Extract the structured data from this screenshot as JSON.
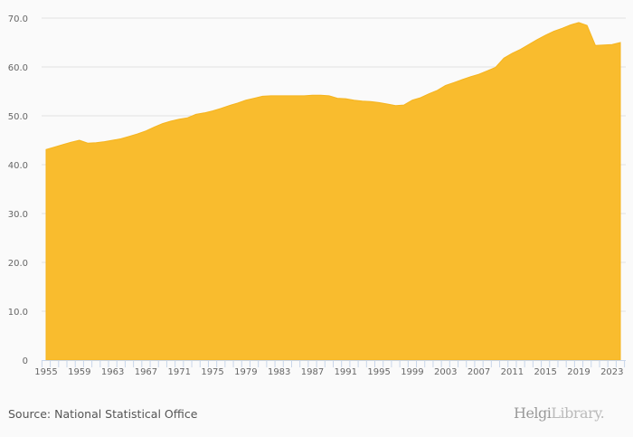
{
  "chart_data": {
    "type": "area",
    "title": "",
    "xlabel": "",
    "ylabel": "",
    "ylim": [
      0,
      70
    ],
    "yticks": [
      "0",
      "10.0",
      "20.0",
      "30.0",
      "40.0",
      "50.0",
      "60.0",
      "70.0"
    ],
    "xticks": [
      "1955",
      "1959",
      "1963",
      "1967",
      "1971",
      "1975",
      "1979",
      "1983",
      "1987",
      "1991",
      "1995",
      "1999",
      "2003",
      "2007",
      "2011",
      "2015",
      "2019",
      "2023"
    ],
    "grid": true,
    "color": "#f9bc2e",
    "x": [
      1955,
      1956,
      1957,
      1958,
      1959,
      1960,
      1961,
      1962,
      1963,
      1964,
      1965,
      1966,
      1967,
      1968,
      1969,
      1970,
      1971,
      1972,
      1973,
      1974,
      1975,
      1976,
      1977,
      1978,
      1979,
      1980,
      1981,
      1982,
      1983,
      1984,
      1985,
      1986,
      1987,
      1988,
      1989,
      1990,
      1991,
      1992,
      1993,
      1994,
      1995,
      1996,
      1997,
      1998,
      1999,
      2000,
      2001,
      2002,
      2003,
      2004,
      2005,
      2006,
      2007,
      2008,
      2009,
      2010,
      2011,
      2012,
      2013,
      2014,
      2015,
      2016,
      2017,
      2018,
      2019,
      2020,
      2021,
      2022,
      2023,
      2024
    ],
    "values": [
      43.1,
      43.6,
      44.1,
      44.6,
      45.0,
      44.4,
      44.5,
      44.7,
      45.0,
      45.3,
      45.8,
      46.3,
      46.9,
      47.7,
      48.4,
      48.9,
      49.3,
      49.6,
      50.3,
      50.6,
      51.0,
      51.5,
      52.1,
      52.6,
      53.2,
      53.6,
      54.0,
      54.1,
      54.1,
      54.1,
      54.1,
      54.1,
      54.2,
      54.2,
      54.1,
      53.6,
      53.5,
      53.2,
      53.0,
      52.9,
      52.7,
      52.4,
      52.1,
      52.2,
      53.2,
      53.7,
      54.5,
      55.2,
      56.2,
      56.8,
      57.4,
      58.0,
      58.5,
      59.2,
      59.9,
      61.8,
      62.8,
      63.6,
      64.6,
      65.6,
      66.5,
      67.3,
      67.9,
      68.6,
      69.1,
      68.5,
      64.4,
      64.5,
      64.6,
      65.0
    ]
  },
  "source": "Source: National Statistical Office",
  "logo": {
    "main": "Helgi",
    "sub": "Library."
  }
}
